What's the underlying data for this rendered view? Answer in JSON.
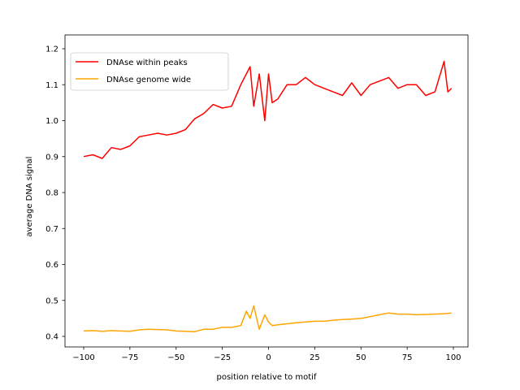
{
  "chart_data": {
    "type": "line",
    "title": "",
    "xlabel": "position relative to motif",
    "ylabel": "average DNA signal",
    "xlim": [
      -105,
      105
    ],
    "ylim": [
      0.375,
      1.2
    ],
    "xticks": [
      -100,
      -75,
      -50,
      -25,
      0,
      25,
      50,
      75,
      100
    ],
    "yticks": [
      0.4,
      0.5,
      0.6,
      0.7,
      0.8,
      0.9,
      1.0,
      1.1,
      1.2
    ],
    "ytick_labels": [
      "0.4",
      "0.5",
      "0.6",
      "0.7",
      "0.8",
      "0.9",
      "1.0",
      "1.1",
      "1.2"
    ],
    "grid": false,
    "legend_position": "top-left",
    "x": [
      -100,
      -95,
      -90,
      -85,
      -80,
      -75,
      -70,
      -65,
      -60,
      -55,
      -50,
      -45,
      -40,
      -35,
      -30,
      -25,
      -20,
      -15,
      -12,
      -10,
      -8,
      -5,
      -2,
      0,
      2,
      5,
      10,
      15,
      20,
      25,
      30,
      35,
      40,
      45,
      50,
      55,
      60,
      65,
      70,
      75,
      80,
      85,
      90,
      95,
      97,
      99
    ],
    "series": [
      {
        "name": "DNAse within peaks",
        "color": "#ff0000",
        "values": [
          0.9,
          0.905,
          0.895,
          0.925,
          0.92,
          0.93,
          0.955,
          0.96,
          0.965,
          0.96,
          0.965,
          0.975,
          1.005,
          1.02,
          1.045,
          1.035,
          1.04,
          1.1,
          1.13,
          1.15,
          1.04,
          1.13,
          1.0,
          1.13,
          1.05,
          1.06,
          1.1,
          1.1,
          1.12,
          1.1,
          1.09,
          1.08,
          1.07,
          1.105,
          1.07,
          1.1,
          1.11,
          1.12,
          1.09,
          1.1,
          1.1,
          1.07,
          1.08,
          1.165,
          1.08,
          1.09
        ]
      },
      {
        "name": "DNAse genome wide",
        "color": "#ffa500",
        "values": [
          0.415,
          0.416,
          0.414,
          0.416,
          0.415,
          0.414,
          0.418,
          0.42,
          0.419,
          0.418,
          0.415,
          0.414,
          0.413,
          0.42,
          0.42,
          0.425,
          0.425,
          0.43,
          0.47,
          0.45,
          0.485,
          0.42,
          0.46,
          0.44,
          0.43,
          0.432,
          0.435,
          0.438,
          0.44,
          0.442,
          0.442,
          0.445,
          0.447,
          0.448,
          0.45,
          0.455,
          0.46,
          0.465,
          0.462,
          0.462,
          0.46,
          0.461,
          0.462,
          0.463,
          0.464,
          0.465
        ]
      }
    ]
  }
}
